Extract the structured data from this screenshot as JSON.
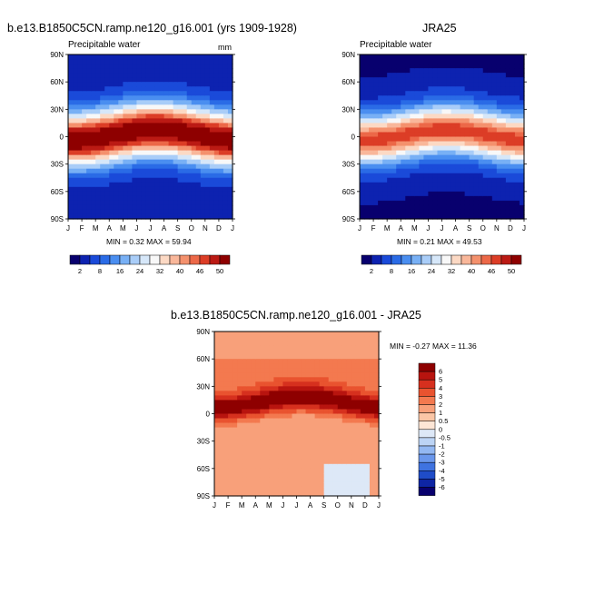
{
  "panels": [
    {
      "title": "b.e13.B1850C5CN.ramp.ne120_g16.001 (yrs 1909-1928)",
      "subtitle": "Precipitable water",
      "units": "mm",
      "minmax": "MIN =   0.32 MAX =  59.94",
      "kind": "abs"
    },
    {
      "title": "JRA25",
      "subtitle": "Precipitable water",
      "units": "",
      "minmax": "MIN =   0.21 MAX =  49.53",
      "kind": "abs2"
    },
    {
      "title": "b.e13.B1850C5CN.ramp.ne120_g16.001 - JRA25",
      "subtitle": "",
      "units": "",
      "minmax": "MIN =  -0.27 MAX =  11.36",
      "kind": "diff"
    }
  ],
  "chart_data": [
    {
      "type": "heatmap",
      "title": "b.e13.B1850C5CN.ramp.ne120_g16.001 (yrs 1909-1928)",
      "variable": "Precipitable water",
      "units": "mm",
      "x_ticks": [
        "J",
        "F",
        "M",
        "A",
        "M",
        "J",
        "J",
        "A",
        "S",
        "O",
        "N",
        "D",
        "J"
      ],
      "y_ticks": [
        "90N",
        "60N",
        "30N",
        "0",
        "30S",
        "60S",
        "90S"
      ],
      "min": 0.32,
      "max": 59.94
    },
    {
      "type": "heatmap",
      "title": "JRA25",
      "variable": "Precipitable water",
      "x_ticks": [
        "J",
        "F",
        "M",
        "A",
        "M",
        "J",
        "J",
        "A",
        "S",
        "O",
        "N",
        "D",
        "J"
      ],
      "y_ticks": [
        "90N",
        "60N",
        "30N",
        "0",
        "30S",
        "60S",
        "90S"
      ],
      "min": 0.21,
      "max": 49.53
    },
    {
      "type": "heatmap",
      "title": "b.e13.B1850C5CN.ramp.ne120_g16.001 - JRA25",
      "x_ticks": [
        "J",
        "F",
        "M",
        "A",
        "M",
        "J",
        "J",
        "A",
        "S",
        "O",
        "N",
        "D",
        "J"
      ],
      "y_ticks": [
        "90N",
        "60N",
        "30N",
        "0",
        "30S",
        "60S",
        "90S"
      ],
      "min": -0.27,
      "max": 11.36
    }
  ],
  "colorbars": {
    "abs_levels": [
      2,
      4,
      8,
      12,
      16,
      20,
      24,
      28,
      32,
      36,
      40,
      44,
      46,
      50
    ],
    "abs_labels": [
      "2",
      "8",
      "16",
      "24",
      "32",
      "40",
      "46",
      "50"
    ],
    "abs_colors": [
      "#08006e",
      "#0d22b0",
      "#1a4ad9",
      "#2a6be6",
      "#4a8ef0",
      "#78b0f5",
      "#a9cdf8",
      "#d6e7f9",
      "#f8f8f8",
      "#fcd9c4",
      "#f9b79a",
      "#f4916d",
      "#ec6848",
      "#dc3d26",
      "#bb1a14",
      "#8e0000"
    ],
    "diff_labels": [
      "6",
      "5",
      "4",
      "3",
      "2",
      "1",
      "0.5",
      "0",
      "-0.5",
      "-1",
      "-2",
      "-3",
      "-4",
      "-5",
      "-6"
    ],
    "diff_colors": [
      "#8e0000",
      "#b8140f",
      "#d6301e",
      "#e9532f",
      "#f3794f",
      "#f8a07a",
      "#fbc6a6",
      "#fde6d6",
      "#dde8f7",
      "#bcd4f5",
      "#93b8f2",
      "#6a97ec",
      "#3f73e0",
      "#1f4cc8",
      "#0e25a4",
      "#08006e"
    ]
  }
}
